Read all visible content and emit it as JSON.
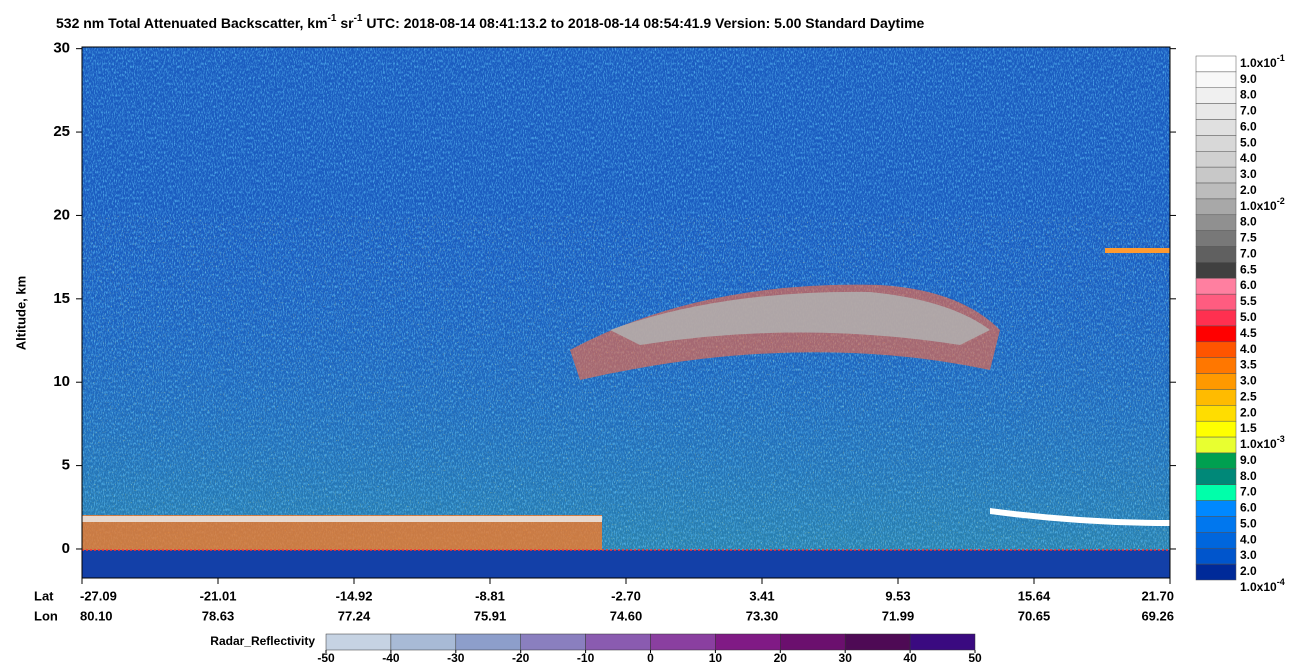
{
  "chart_data": {
    "type": "lidar-curtain",
    "title": [
      "532 nm Total Attenuated Backscatter, km",
      "-1",
      " sr",
      "-1",
      "   UTC:  2018-08-14 08:41:13.2  to  2018-08-14 08:54:41.9    Version: 5.00  Standard  Daytime"
    ],
    "ylabel": "Altitude, km",
    "ylim": [
      -1.74,
      30.1
    ],
    "yticks": [
      0,
      5,
      10,
      15,
      20,
      25,
      30
    ],
    "x_row_names": [
      "Lat",
      "Lon"
    ],
    "lat_labels": [
      "-27.09",
      "-21.01",
      "-14.92",
      "-8.81",
      "-2.70",
      "3.41",
      "9.53",
      "15.64",
      "21.70"
    ],
    "lon_labels": [
      "80.10",
      "78.63",
      "77.24",
      "75.91",
      "74.60",
      "73.30",
      "71.99",
      "70.65",
      "69.26"
    ],
    "colorbar": {
      "labels": [
        "1.0x10",
        "9.0",
        "8.0",
        "7.0",
        "6.0",
        "5.0",
        "4.0",
        "3.0",
        "2.0",
        "1.0x10",
        "8.0",
        "7.5",
        "7.0",
        "6.5",
        "6.0",
        "5.5",
        "5.0",
        "4.5",
        "4.0",
        "3.5",
        "3.0",
        "2.5",
        "2.0",
        "1.5",
        "1.0x10",
        "9.0",
        "8.0",
        "7.0",
        "6.0",
        "5.0",
        "4.0",
        "3.0",
        "2.0",
        "1.0x10"
      ],
      "exponents": [
        "-1",
        null,
        null,
        null,
        null,
        null,
        null,
        null,
        null,
        "-2",
        null,
        null,
        null,
        null,
        null,
        null,
        null,
        null,
        null,
        null,
        null,
        null,
        null,
        null,
        "-3",
        null,
        null,
        null,
        null,
        null,
        null,
        null,
        null,
        "-4"
      ],
      "colors": [
        "#ffffff",
        "#f8f8f8",
        "#f0f0f0",
        "#e8e8e8",
        "#e0e0e0",
        "#d8d8d8",
        "#d0d0d0",
        "#c8c8c8",
        "#bcbcbc",
        "#a8a8a8",
        "#909090",
        "#787878",
        "#606060",
        "#404040",
        "#ff7fa0",
        "#ff5c80",
        "#ff3050",
        "#ff0000",
        "#ff5500",
        "#ff7700",
        "#ff9900",
        "#ffbb00",
        "#ffdd00",
        "#ffff00",
        "#e8ff30",
        "#00a050",
        "#008878",
        "#00ffaa",
        "#0088ff",
        "#0077ee",
        "#0066dd",
        "#0055cc",
        "#002a99"
      ]
    },
    "radar": {
      "label": "Radar_Reflectivity",
      "ticks": [
        -50,
        -40,
        -30,
        -20,
        -10,
        0,
        10,
        20,
        30,
        40,
        50
      ],
      "colors": [
        "#c6d3e3",
        "#a8bad6",
        "#8d9ecb",
        "#8a7fbf",
        "#8a5bb0",
        "#8a3fa0",
        "#801a85",
        "#6b0f6e",
        "#4e0a55",
        "#3a0a80"
      ]
    }
  }
}
